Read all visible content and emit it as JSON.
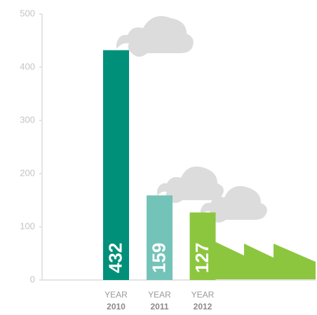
{
  "chart_data": {
    "type": "bar",
    "category_prefix": "YEAR",
    "categories": [
      "2010",
      "2011",
      "2012"
    ],
    "values": [
      432,
      159,
      127
    ],
    "colors": [
      "#00907a",
      "#74c3b8",
      "#8cc63f"
    ],
    "ylim": [
      0,
      500
    ],
    "yticks": [
      0,
      100,
      200,
      300,
      400,
      500
    ]
  }
}
